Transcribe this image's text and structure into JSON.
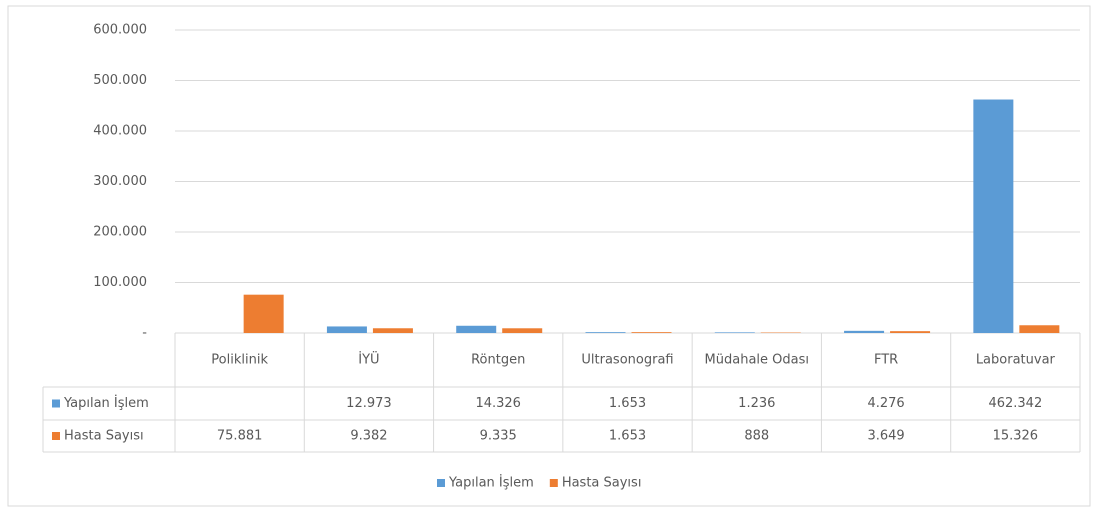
{
  "chart_data": {
    "type": "bar",
    "categories": [
      "Poliklinik",
      "İYÜ",
      "Röntgen",
      "Ultrasonografi",
      "Müdahale Odası",
      "FTR",
      "Laboratuvar"
    ],
    "series": [
      {
        "name": "Yapılan İşlem",
        "color": "#5b9bd5",
        "values": [
          null,
          12973,
          14326,
          1653,
          1236,
          4276,
          462342
        ],
        "value_labels": [
          null,
          "12.973",
          "14.326",
          "1.653",
          "1.236",
          "4.276",
          "462.342"
        ]
      },
      {
        "name": "Hasta Sayısı",
        "color": "#ed7d31",
        "values": [
          75881,
          9382,
          9335,
          1653,
          888,
          3649,
          15326
        ],
        "value_labels": [
          "75.881",
          "9.382",
          "9.335",
          "1.653",
          "888",
          "3.649",
          "15.326"
        ]
      }
    ],
    "ylim": [
      0,
      600000
    ],
    "yticks": [
      {
        "value": 0,
        "label": "-"
      },
      {
        "value": 100000,
        "label": "100.000"
      },
      {
        "value": 200000,
        "label": "200.000"
      },
      {
        "value": 300000,
        "label": "300.000"
      },
      {
        "value": 400000,
        "label": "400.000"
      },
      {
        "value": 500000,
        "label": "500.000"
      },
      {
        "value": 600000,
        "label": "600.000"
      }
    ],
    "grid": true,
    "legend": "bottom"
  }
}
